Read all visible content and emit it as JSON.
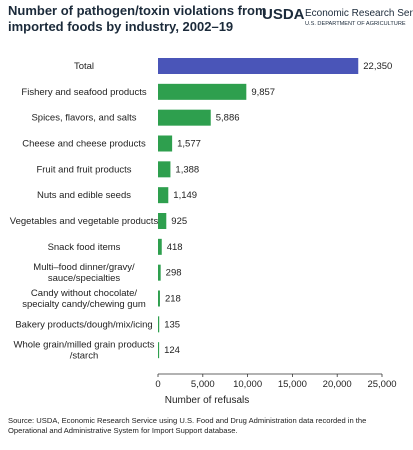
{
  "chart_data": {
    "type": "bar",
    "orientation": "horizontal",
    "title": "Number of pathogen/toxin violations from\nimported foods by industry, 2002–19",
    "logo": {
      "name": "USDA",
      "line1": "Economic Research Service",
      "line2": "U.S. DEPARTMENT OF AGRICULTURE"
    },
    "categories": [
      "Total",
      "Fishery and seafood products",
      "Spices, flavors, and salts",
      "Cheese and cheese products",
      "Fruit and fruit products",
      "Nuts and edible seeds",
      "Vegetables and vegetable products",
      "Snack food items",
      "Multi–food dinner/gravy/\nsauce/specialties",
      "Candy without chocolate/\nspecialty candy/chewing gum",
      "Bakery products/dough/mix/icing",
      "Whole grain/milled grain products\n/starch"
    ],
    "values": [
      22350,
      9857,
      5886,
      1577,
      1388,
      1149,
      925,
      418,
      298,
      218,
      135,
      124
    ],
    "value_labels": [
      "22,350",
      "9,857",
      "5,886",
      "1,577",
      "1,388",
      "1,149",
      "925",
      "418",
      "298",
      "218",
      "135",
      "124"
    ],
    "colors": [
      "#4a55b8",
      "#2e9f4e",
      "#2e9f4e",
      "#2e9f4e",
      "#2e9f4e",
      "#2e9f4e",
      "#2e9f4e",
      "#2e9f4e",
      "#2e9f4e",
      "#2e9f4e",
      "#2e9f4e",
      "#2e9f4e"
    ],
    "xlim": [
      0,
      25000
    ],
    "xticks": [
      0,
      {
        "value": 5000,
        "label": "5,000"
      },
      {
        "value": 10000,
        "label": "10,000"
      },
      {
        "value": 15000,
        "label": "15,000"
      },
      {
        "value": 20000,
        "label": "20,000"
      },
      {
        "value": 25000,
        "label": "25,000"
      }
    ],
    "xlabel": "Number of refusals",
    "source": "Source: USDA, Economic Research Service using U.S. Food and Drug Administration data recorded in the\nOperational and Administrative System for Import Support database."
  }
}
